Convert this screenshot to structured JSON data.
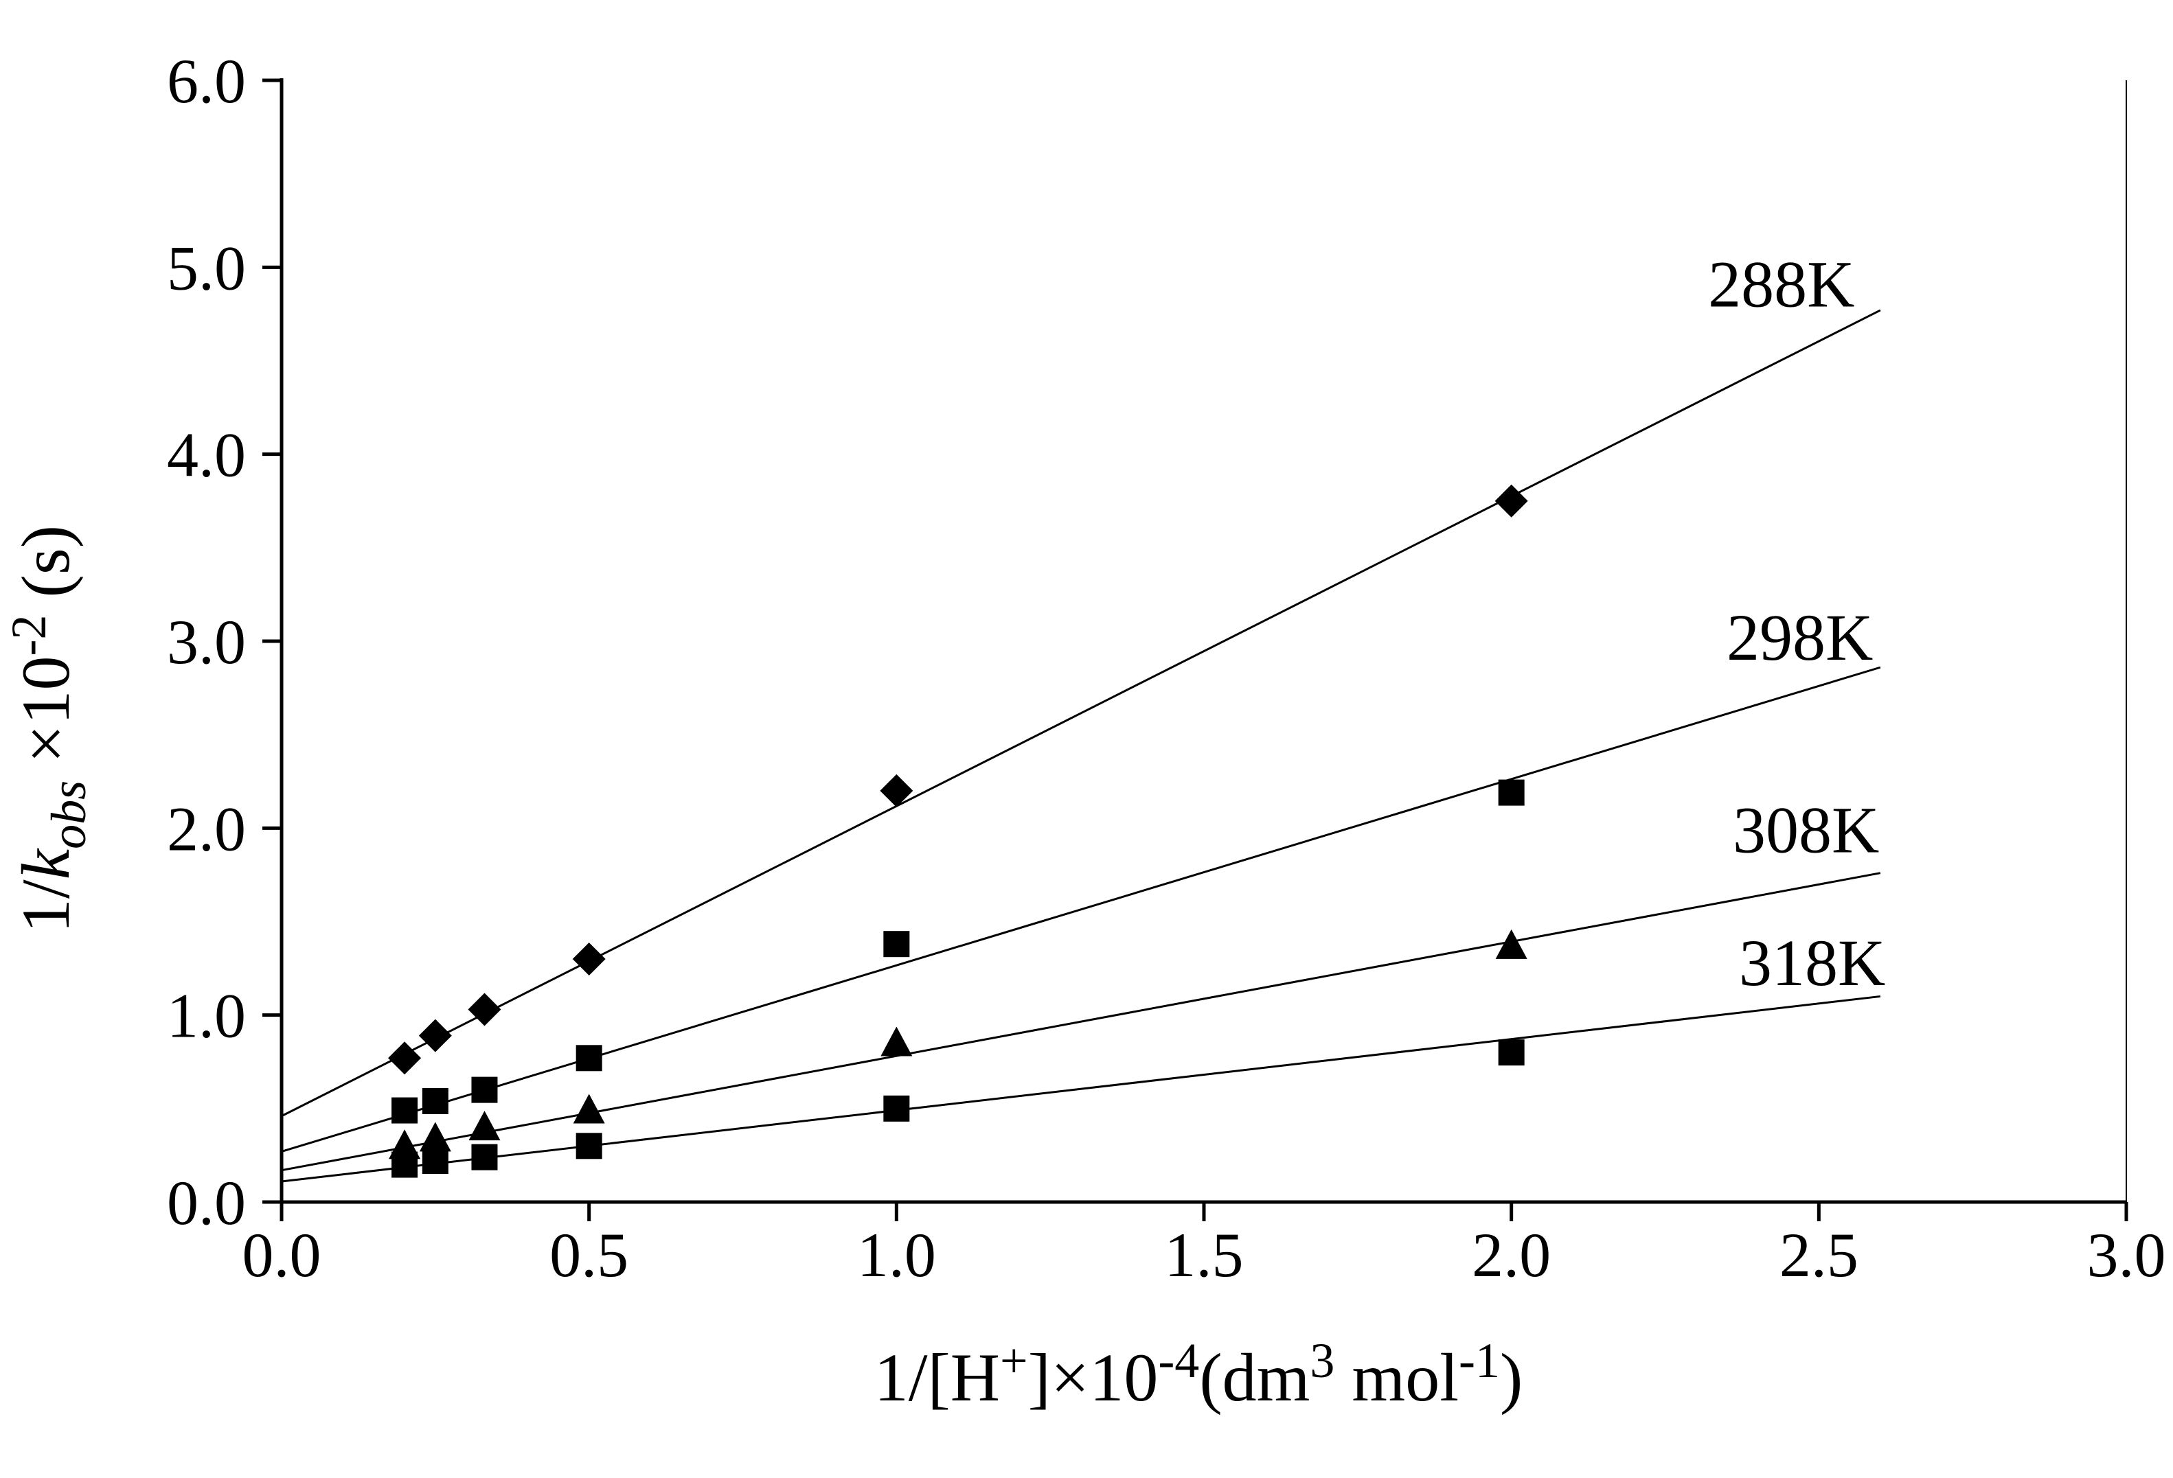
{
  "figure": {
    "background": "#ffffff"
  },
  "chart_data": {
    "type": "scatter",
    "title": "",
    "xlabel": "1/[H+]×10-4(dm3 mol-1)",
    "ylabel": "1/kobs ×10-2 (s)",
    "xlabel_parts": [
      {
        "t": "1/[H",
        "s": "normal"
      },
      {
        "t": "+",
        "s": "sup"
      },
      {
        "t": "]×10",
        "s": "normal"
      },
      {
        "t": "-4",
        "s": "sup"
      },
      {
        "t": "(dm",
        "s": "normal"
      },
      {
        "t": "3",
        "s": "sup"
      },
      {
        "t": " mol",
        "s": "normal"
      },
      {
        "t": "-1",
        "s": "sup"
      },
      {
        "t": ")",
        "s": "normal"
      }
    ],
    "ylabel_parts": [
      {
        "t": "1/",
        "s": "normal"
      },
      {
        "t": "k",
        "s": "italic"
      },
      {
        "t": "obs",
        "s": "italic-sub"
      },
      {
        "t": " ×10",
        "s": "normal"
      },
      {
        "t": "-2",
        "s": "sup"
      },
      {
        "t": " (s)",
        "s": "normal"
      }
    ],
    "xlim": [
      0.0,
      3.0
    ],
    "ylim": [
      0.0,
      6.0
    ],
    "xticks": [
      "0.0",
      "0.5",
      "1.0",
      "1.5",
      "2.0",
      "2.5",
      "3.0"
    ],
    "yticks": [
      "0.0",
      "1.0",
      "2.0",
      "3.0",
      "4.0",
      "5.0",
      "6.0"
    ],
    "grid": false,
    "legend_position": "inline-labels-right",
    "axis_color": "#000000",
    "marker_color": "#000000",
    "series": [
      {
        "name": "288K",
        "marker": "diamond",
        "x": [
          0.2,
          0.25,
          0.33,
          0.5,
          1.0,
          2.0
        ],
        "y": [
          0.77,
          0.89,
          1.03,
          1.3,
          2.2,
          3.75
        ],
        "trendline": {
          "x": [
            0.0,
            2.6
          ],
          "y": [
            0.46,
            4.77
          ]
        },
        "label": {
          "text": "288K",
          "x": 2.32,
          "y": 4.79
        }
      },
      {
        "name": "298K",
        "marker": "square",
        "x": [
          0.2,
          0.25,
          0.33,
          0.5,
          1.0,
          2.0
        ],
        "y": [
          0.49,
          0.54,
          0.6,
          0.77,
          1.38,
          2.19
        ],
        "trendline": {
          "x": [
            0.0,
            2.6
          ],
          "y": [
            0.27,
            2.86
          ]
        },
        "label": {
          "text": "298K",
          "x": 2.35,
          "y": 2.9
        }
      },
      {
        "name": "308K",
        "marker": "triangle",
        "x": [
          0.2,
          0.25,
          0.33,
          0.5,
          1.0,
          2.0
        ],
        "y": [
          0.3,
          0.34,
          0.4,
          0.49,
          0.85,
          1.37
        ],
        "trendline": {
          "x": [
            0.0,
            2.6
          ],
          "y": [
            0.17,
            1.76
          ]
        },
        "label": {
          "text": "308K",
          "x": 2.36,
          "y": 1.87
        }
      },
      {
        "name": "318K",
        "marker": "square",
        "x": [
          0.2,
          0.25,
          0.33,
          0.5,
          1.0,
          2.0
        ],
        "y": [
          0.2,
          0.22,
          0.24,
          0.3,
          0.5,
          0.8
        ],
        "trendline": {
          "x": [
            0.0,
            2.6
          ],
          "y": [
            0.11,
            1.1
          ]
        },
        "label": {
          "text": "318K",
          "x": 2.37,
          "y": 1.16
        }
      }
    ]
  }
}
